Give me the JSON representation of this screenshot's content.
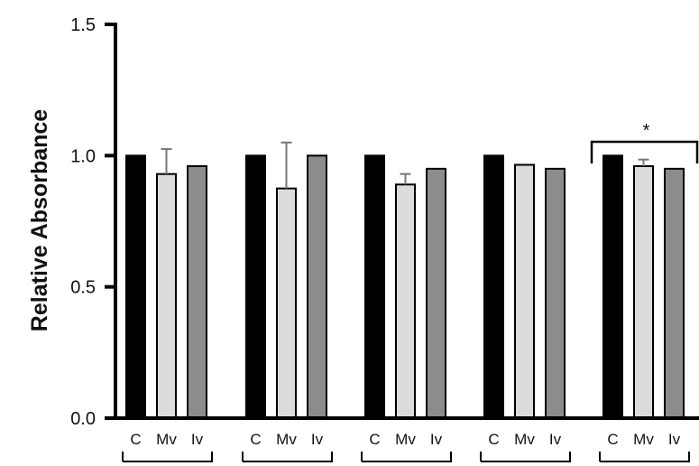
{
  "chart_data": {
    "type": "bar",
    "title": "",
    "xlabel": "",
    "ylabel": "Relative Absorbance",
    "ylim": [
      0,
      1.5
    ],
    "yticks": [
      "0.0",
      "0.5",
      "1.0",
      "1.5"
    ],
    "groups": [
      {
        "bars": [
          {
            "category": "C",
            "value": 1.0,
            "error": 0
          },
          {
            "category": "Mv",
            "value": 0.93,
            "error": 0.095
          },
          {
            "category": "Iv",
            "value": 0.96,
            "error": 0
          }
        ]
      },
      {
        "bars": [
          {
            "category": "C",
            "value": 1.0,
            "error": 0
          },
          {
            "category": "Mv",
            "value": 0.875,
            "error": 0.175
          },
          {
            "category": "Iv",
            "value": 1.0,
            "error": 0
          }
        ]
      },
      {
        "bars": [
          {
            "category": "C",
            "value": 1.0,
            "error": 0
          },
          {
            "category": "Mv",
            "value": 0.89,
            "error": 0.04
          },
          {
            "category": "Iv",
            "value": 0.95,
            "error": 0
          }
        ]
      },
      {
        "bars": [
          {
            "category": "C",
            "value": 1.0,
            "error": 0
          },
          {
            "category": "Mv",
            "value": 0.965,
            "error": 0
          },
          {
            "category": "Iv",
            "value": 0.95,
            "error": 0
          }
        ]
      },
      {
        "bars": [
          {
            "category": "C",
            "value": 1.0,
            "error": 0
          },
          {
            "category": "Mv",
            "value": 0.96,
            "error": 0.025
          },
          {
            "category": "Iv",
            "value": 0.95,
            "error": 0
          }
        ]
      }
    ],
    "bar_colors": {
      "C": "#000000",
      "Mv": "#dcdcdc",
      "Iv": "#8c8c8c"
    },
    "significance": {
      "group_index": 4,
      "label": "*"
    },
    "grid": false,
    "legend": "none"
  }
}
